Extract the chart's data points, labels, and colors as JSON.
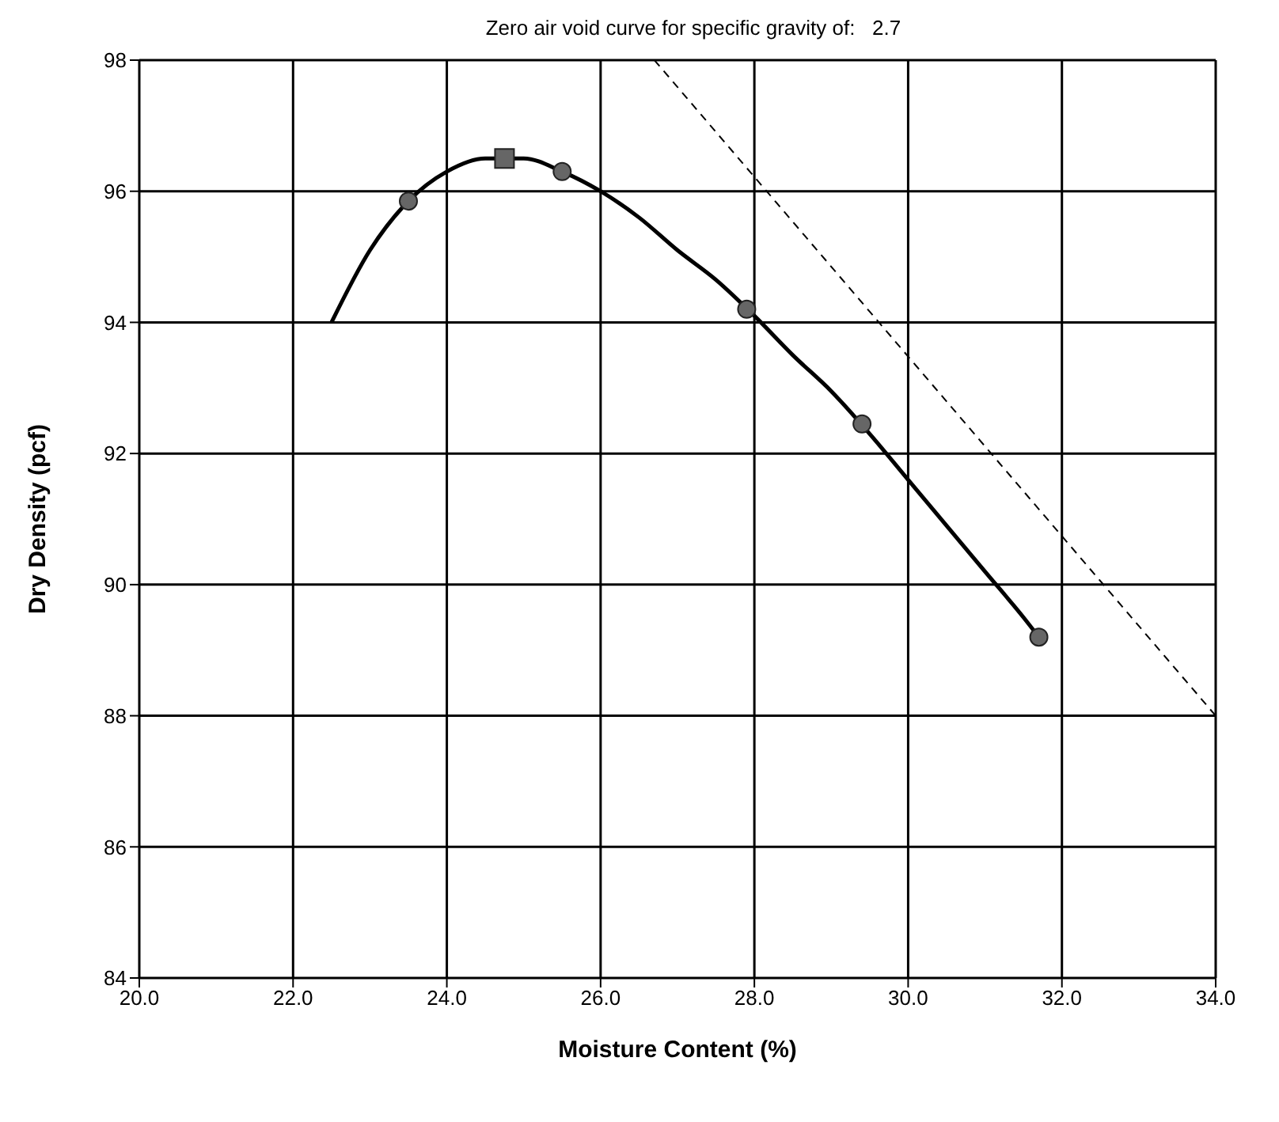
{
  "chart_data": {
    "type": "line",
    "title": "Zero air void curve for specific gravity of:   2.7",
    "xlabel": "Moisture Content (%)",
    "ylabel": "Dry Density (pcf)",
    "xlim": [
      20,
      34
    ],
    "xticks": [
      {
        "value": 20,
        "label": "20.0"
      },
      {
        "value": 22,
        "label": "22.0"
      },
      {
        "value": 24,
        "label": "24.0"
      },
      {
        "value": 26,
        "label": "26.0"
      },
      {
        "value": 28,
        "label": "28.0"
      },
      {
        "value": 30,
        "label": "30.0"
      },
      {
        "value": 32,
        "label": "32.0"
      },
      {
        "value": 34,
        "label": "34.0"
      }
    ],
    "ylim": [
      84,
      98
    ],
    "yticks": [
      84,
      86,
      88,
      90,
      92,
      94,
      96,
      98
    ],
    "grid": true,
    "series": [
      {
        "color": "#000000",
        "marker": "none",
        "line_style": "solid",
        "x": [
          22.5,
          23,
          23.5,
          24,
          24.5,
          25,
          25.5,
          26,
          26.5,
          27,
          27.5,
          28,
          28.5,
          29,
          29.5,
          30,
          30.5,
          31,
          31.5,
          31.7
        ],
        "values": [
          94.0,
          95.1,
          95.85,
          96.3,
          96.5,
          96.5,
          96.3,
          96.0,
          95.6,
          95.1,
          94.65,
          94.1,
          93.5,
          92.95,
          92.3,
          91.6,
          90.9,
          90.2,
          89.5,
          89.2
        ]
      },
      {
        "type": "scatter",
        "color": "#666666",
        "marker": "circle",
        "x": [
          23.5,
          25.5,
          27.9,
          29.4,
          31.7
        ],
        "values": [
          95.85,
          96.3,
          94.2,
          92.45,
          89.2
        ]
      },
      {
        "type": "scatter",
        "color": "#666666",
        "marker": "square",
        "x": [
          24.75
        ],
        "values": [
          96.5
        ]
      },
      {
        "color": "#000000",
        "marker": "none",
        "line_style": "dashed",
        "x": [
          26.7,
          34
        ],
        "values": [
          98,
          88
        ]
      }
    ]
  }
}
